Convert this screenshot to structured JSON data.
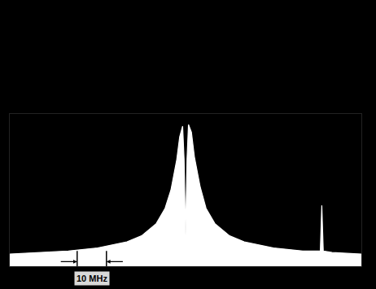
{
  "chart_data": {
    "type": "line",
    "x": [
      -60,
      -50,
      -40,
      -30,
      -20,
      -15,
      -10,
      -7,
      -5,
      -3,
      -2,
      -1,
      -0.5,
      0,
      0.5,
      1,
      2,
      3,
      5,
      7,
      10,
      15,
      20,
      30,
      40,
      45,
      46,
      46.5,
      47,
      50,
      60
    ],
    "values": [
      8,
      9,
      10,
      12,
      16,
      20,
      28,
      38,
      50,
      70,
      85,
      92,
      70,
      20,
      70,
      93,
      88,
      72,
      52,
      38,
      28,
      20,
      16,
      12,
      10,
      10,
      10,
      40,
      10,
      9,
      8
    ],
    "color": "#ffffff",
    "xlim": [
      -60,
      60
    ],
    "ylim": [
      0,
      100
    ],
    "tick_labels": false,
    "grid": false,
    "scale_bar": {
      "label": "10 MHz",
      "from": -37,
      "to": -27
    }
  }
}
